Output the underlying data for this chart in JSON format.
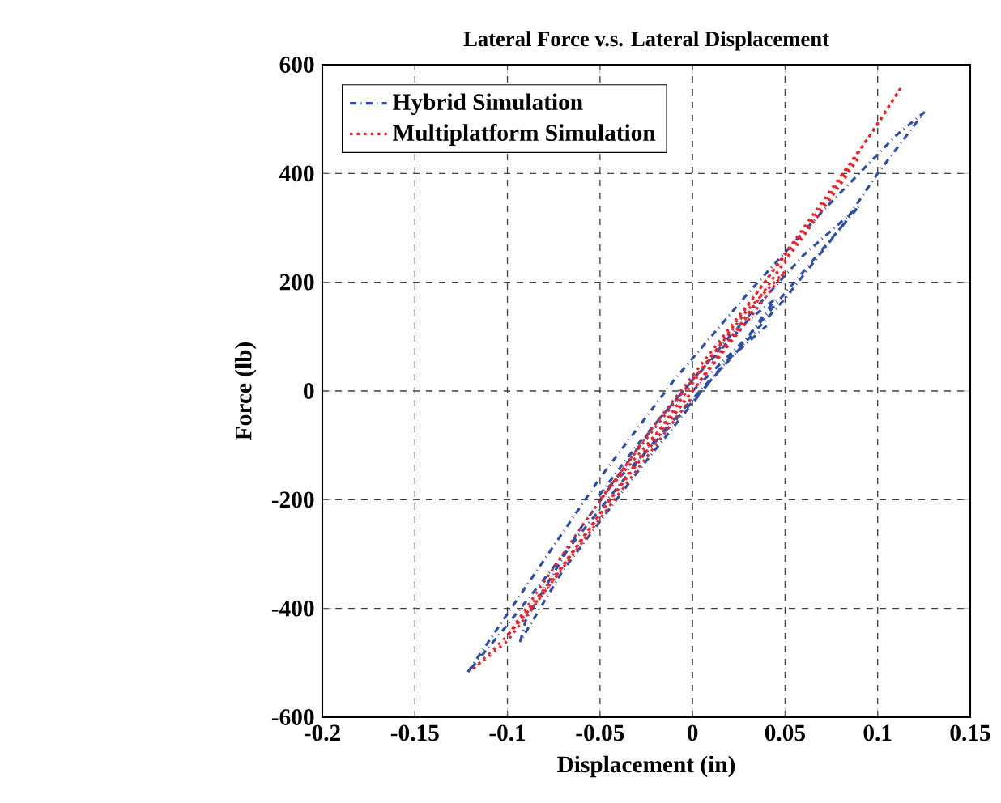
{
  "chart_data": {
    "type": "line",
    "title": "Lateral Force v.s. Lateral Displacement",
    "xlabel": "Displacement (in)",
    "ylabel": "Force (lb)",
    "xlim": [
      -0.2,
      0.15
    ],
    "xticks": [
      -0.2,
      -0.15,
      -0.1,
      -0.05,
      0,
      0.05,
      0.1,
      0.15
    ],
    "ylim": [
      -600,
      600
    ],
    "yticks": [
      -600,
      -400,
      -200,
      0,
      200,
      400,
      600
    ],
    "grid": true,
    "legend": "top left",
    "marker": "none",
    "series": [
      {
        "name": "Hybrid Simulation",
        "color": "#2e4fa8",
        "line_style": "dashdot",
        "x": [
          0,
          0.03,
          0.045,
          0.03,
          0,
          -0.03,
          -0.05,
          -0.03,
          0,
          0.07,
          0.09,
          0.06,
          0.02,
          -0.02,
          -0.06,
          -0.09,
          -0.093,
          -0.07,
          -0.03,
          0.01,
          0.05,
          0.08,
          0.1,
          0.125,
          0.11,
          0.07,
          0.03,
          -0.01,
          -0.05,
          -0.09,
          -0.122,
          -0.1,
          -0.06,
          -0.02,
          0.02,
          0.04
        ],
        "values": [
          0,
          100,
          170,
          130,
          20,
          -100,
          -190,
          -130,
          -20,
          260,
          340,
          250,
          100,
          -60,
          -250,
          -420,
          -460,
          -330,
          -150,
          20,
          170,
          300,
          400,
          512,
          470,
          330,
          180,
          20,
          -160,
          -360,
          -520,
          -430,
          -260,
          -90,
          60,
          120
        ]
      },
      {
        "name": "Multiplatform Simulation",
        "color": "#ee2229",
        "line_style": "dotted",
        "x": [
          0,
          0.03,
          0.05,
          0.03,
          0,
          -0.03,
          -0.05,
          -0.03,
          0,
          0.04,
          0.08,
          0.09,
          0.07,
          0.03,
          -0.02,
          -0.06,
          -0.09,
          -0.1,
          -0.08,
          -0.04,
          0.02,
          0.06,
          0.09,
          0.112,
          0.1,
          0.06,
          0.02,
          -0.03,
          -0.07,
          -0.1,
          -0.118,
          -0.1,
          -0.06,
          -0.02,
          0
        ],
        "values": [
          0,
          130,
          220,
          150,
          20,
          -110,
          -200,
          -120,
          0,
          190,
          380,
          430,
          340,
          160,
          -60,
          -250,
          -400,
          -450,
          -370,
          -180,
          90,
          290,
          440,
          555,
          490,
          300,
          110,
          -130,
          -320,
          -450,
          -510,
          -460,
          -280,
          -100,
          -10
        ]
      }
    ]
  }
}
